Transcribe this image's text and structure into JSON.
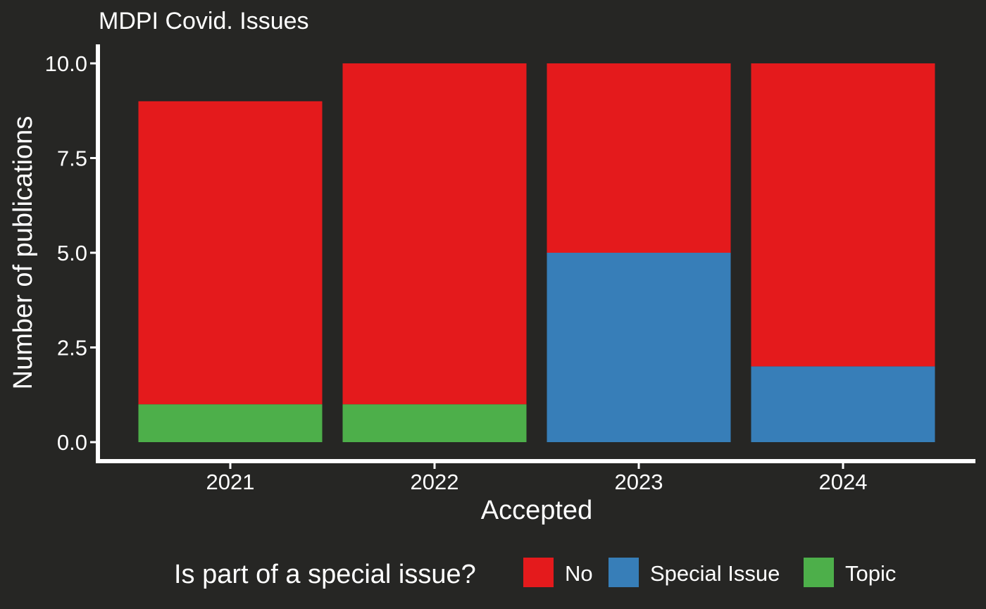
{
  "chart_data": {
    "type": "bar",
    "stacked": true,
    "title": "MDPI Covid. Issues",
    "xlabel": "Accepted",
    "ylabel": "Number of publications",
    "categories": [
      "2021",
      "2022",
      "2023",
      "2024"
    ],
    "ylim": [
      0,
      10
    ],
    "yticks": [
      "0.0",
      "2.5",
      "5.0",
      "7.5",
      "10.0"
    ],
    "grid": false,
    "legend_position": "bottom",
    "legend_title": "Is part of a special issue?",
    "series": [
      {
        "name": "Topic",
        "color": "#4DAF4A",
        "values": [
          1,
          1,
          0,
          0
        ]
      },
      {
        "name": "Special Issue",
        "color": "#377EB8",
        "values": [
          0,
          0,
          5,
          2
        ]
      },
      {
        "name": "No",
        "color": "#E41A1C",
        "values": [
          8,
          9,
          5,
          8
        ]
      }
    ],
    "legend_order": [
      "No",
      "Special Issue",
      "Topic"
    ],
    "background": "#262624",
    "axis_color": "#ffffff"
  }
}
